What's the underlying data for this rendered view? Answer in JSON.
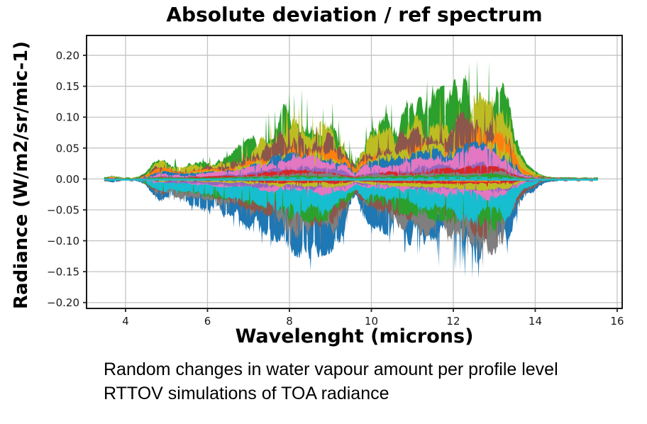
{
  "figure": {
    "title": "Absolute deviation / ref spectrum",
    "xlabel": "Wavelenght (microns)",
    "ylabel": "Radiance (W/m2/sr/mic-1)"
  },
  "caption": {
    "line1": "Random changes in water vapour amount per profile level",
    "line2": "RTTOV simulations of TOA radiance"
  },
  "style": {
    "background": "#ffffff",
    "grid_color": "#c4c4c4",
    "spine_color": "#000000",
    "tick_color": "#262626",
    "tick_label_color": "#1a1a1a"
  },
  "chart_data": {
    "type": "line",
    "title": "Absolute deviation / ref spectrum",
    "xlabel": "Wavelenght (microns)",
    "ylabel": "Radiance (W/m2/sr/mic-1)",
    "xlim": [
      3.048,
      16.122
    ],
    "ylim": [
      -0.2095,
      0.2322
    ],
    "xticks": [
      4,
      6,
      8,
      10,
      12,
      14,
      16
    ],
    "xtick_labels": [
      "4",
      "6",
      "8",
      "10",
      "12",
      "14",
      "16"
    ],
    "yticks": [
      0.2,
      0.15,
      0.1,
      0.05,
      0.0,
      -0.05,
      -0.1,
      -0.15,
      -0.2
    ],
    "ytick_labels": [
      "0.20",
      "0.15",
      "0.10",
      "0.05",
      "0.00",
      "−0.05",
      "−0.10",
      "−0.15",
      "−0.20"
    ],
    "grid": true,
    "legend": "none",
    "series_count_estimate": 50,
    "description": "Dense ensemble of ~50 overlapping noisy deviation spectra (one per perturbed profile level), cycling through the matplotlib tab10 colors, symmetric about zero. Values below are the approximate spike-top envelopes read from the plot.",
    "envelope": {
      "x": [
        3.48,
        3.65,
        3.8,
        3.95,
        4.15,
        4.35,
        4.55,
        4.75,
        4.95,
        5.15,
        5.4,
        5.7,
        6.0,
        6.3,
        6.6,
        6.9,
        7.15,
        7.4,
        7.6,
        7.8,
        8.0,
        8.2,
        8.45,
        8.7,
        8.95,
        9.15,
        9.35,
        9.5,
        9.62,
        9.75,
        9.9,
        10.1,
        10.35,
        10.6,
        10.85,
        11.1,
        11.35,
        11.6,
        11.85,
        12.1,
        12.35,
        12.6,
        12.8,
        13.0,
        13.2,
        13.35,
        13.5,
        13.65,
        13.8,
        13.95,
        14.1,
        14.3,
        14.6,
        15.0,
        15.3,
        15.53
      ],
      "upper": [
        0.004,
        0.007,
        0.005,
        0.002,
        0.002,
        0.006,
        0.018,
        0.04,
        0.046,
        0.036,
        0.03,
        0.034,
        0.04,
        0.048,
        0.058,
        0.07,
        0.085,
        0.11,
        0.13,
        0.138,
        0.148,
        0.152,
        0.148,
        0.142,
        0.135,
        0.12,
        0.095,
        0.06,
        0.038,
        0.07,
        0.1,
        0.112,
        0.122,
        0.132,
        0.142,
        0.152,
        0.16,
        0.17,
        0.18,
        0.19,
        0.2,
        0.21,
        0.208,
        0.2,
        0.185,
        0.15,
        0.095,
        0.05,
        0.028,
        0.018,
        0.01,
        0.005,
        0.004,
        0.003,
        0.003,
        0.002
      ],
      "lower": [
        -0.004,
        -0.007,
        -0.005,
        -0.002,
        -0.002,
        -0.007,
        -0.022,
        -0.045,
        -0.05,
        -0.046,
        -0.048,
        -0.055,
        -0.062,
        -0.07,
        -0.078,
        -0.088,
        -0.098,
        -0.11,
        -0.118,
        -0.126,
        -0.14,
        -0.148,
        -0.15,
        -0.148,
        -0.142,
        -0.132,
        -0.115,
        -0.075,
        -0.045,
        -0.065,
        -0.085,
        -0.095,
        -0.105,
        -0.115,
        -0.122,
        -0.13,
        -0.136,
        -0.142,
        -0.15,
        -0.158,
        -0.166,
        -0.178,
        -0.183,
        -0.178,
        -0.168,
        -0.148,
        -0.1,
        -0.055,
        -0.035,
        -0.03,
        -0.014,
        -0.006,
        -0.004,
        -0.003,
        -0.003,
        -0.002
      ]
    },
    "palette": {
      "blue": "#1f77b4",
      "orange": "#ff7f0e",
      "green": "#2ca02c",
      "red": "#d62728",
      "purple": "#9467bd",
      "brown": "#8c564b",
      "pink": "#e377c2",
      "gray": "#7f7f7f",
      "olive": "#bcbd22",
      "cyan": "#17becf"
    },
    "layers_top": [
      {
        "name": "green",
        "color": "#2ca02c",
        "scale": 1.0
      },
      {
        "name": "olive",
        "color": "#bcbd22",
        "scale": 0.8
      },
      {
        "name": "brown",
        "color": "#8c564b",
        "scale": 0.65
      },
      {
        "name": "orange",
        "color": "#ff7f0e",
        "scale": 0.48
      },
      {
        "name": "olive2",
        "color": "#bcbd22",
        "scale": 0.4
      },
      {
        "name": "blue",
        "color": "#1f77b4",
        "scale": 0.34
      },
      {
        "name": "pink",
        "color": "#e377c2",
        "scale": 0.3
      },
      {
        "name": "purple",
        "color": "#9467bd",
        "scale": 0.16
      },
      {
        "name": "red",
        "color": "#d62728",
        "scale": 0.12
      },
      {
        "name": "gray",
        "color": "#7f7f7f",
        "scale": 0.085
      },
      {
        "name": "green2",
        "color": "#2ca02c",
        "scale": 0.05
      },
      {
        "name": "cyan",
        "color": "#17becf",
        "scale": 0.025
      }
    ],
    "layers_bottom": [
      {
        "name": "blue",
        "color": "#1f77b4",
        "scale": 1.0
      },
      {
        "name": "gray",
        "color": "#7f7f7f",
        "scale": 0.8
      },
      {
        "name": "brown",
        "color": "#8c564b",
        "scale": 0.62
      },
      {
        "name": "green",
        "color": "#2ca02c",
        "scale": 0.55
      },
      {
        "name": "cyan",
        "color": "#17becf",
        "scale": 0.5
      },
      {
        "name": "pink",
        "color": "#e377c2",
        "scale": 0.22
      },
      {
        "name": "purple",
        "color": "#9467bd",
        "scale": 0.18
      },
      {
        "name": "olive",
        "color": "#bcbd22",
        "scale": 0.12
      },
      {
        "name": "red",
        "color": "#d62728",
        "scale": 0.07
      },
      {
        "name": "orange",
        "color": "#ff7f0e",
        "scale": 0.035
      }
    ]
  }
}
